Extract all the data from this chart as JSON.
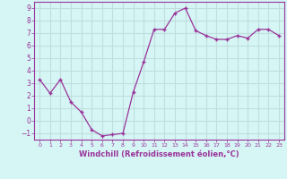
{
  "x": [
    0,
    1,
    2,
    3,
    4,
    5,
    6,
    7,
    8,
    9,
    10,
    11,
    12,
    13,
    14,
    15,
    16,
    17,
    18,
    19,
    20,
    21,
    22,
    23
  ],
  "y": [
    3.3,
    2.2,
    3.3,
    1.5,
    0.7,
    -0.7,
    -1.2,
    -1.1,
    -1.0,
    2.3,
    4.7,
    7.3,
    7.3,
    8.6,
    9.0,
    7.2,
    6.8,
    6.5,
    6.5,
    6.8,
    6.6,
    7.3,
    7.3,
    6.8
  ],
  "line_color": "#993399",
  "marker": "+",
  "markersize": 3,
  "linewidth": 0.9,
  "xlabel": "Windchill (Refroidissement éolien,°C)",
  "xlabel_fontsize": 6,
  "bg_color": "#d6f5f5",
  "grid_color": "#c0dede",
  "tick_color": "#993399",
  "label_color": "#993399",
  "ylim": [
    -1.5,
    9.5
  ],
  "xlim": [
    -0.5,
    23.5
  ],
  "yticks": [
    -1,
    0,
    1,
    2,
    3,
    4,
    5,
    6,
    7,
    8,
    9
  ],
  "xticks": [
    0,
    1,
    2,
    3,
    4,
    5,
    6,
    7,
    8,
    9,
    10,
    11,
    12,
    13,
    14,
    15,
    16,
    17,
    18,
    19,
    20,
    21,
    22,
    23
  ]
}
